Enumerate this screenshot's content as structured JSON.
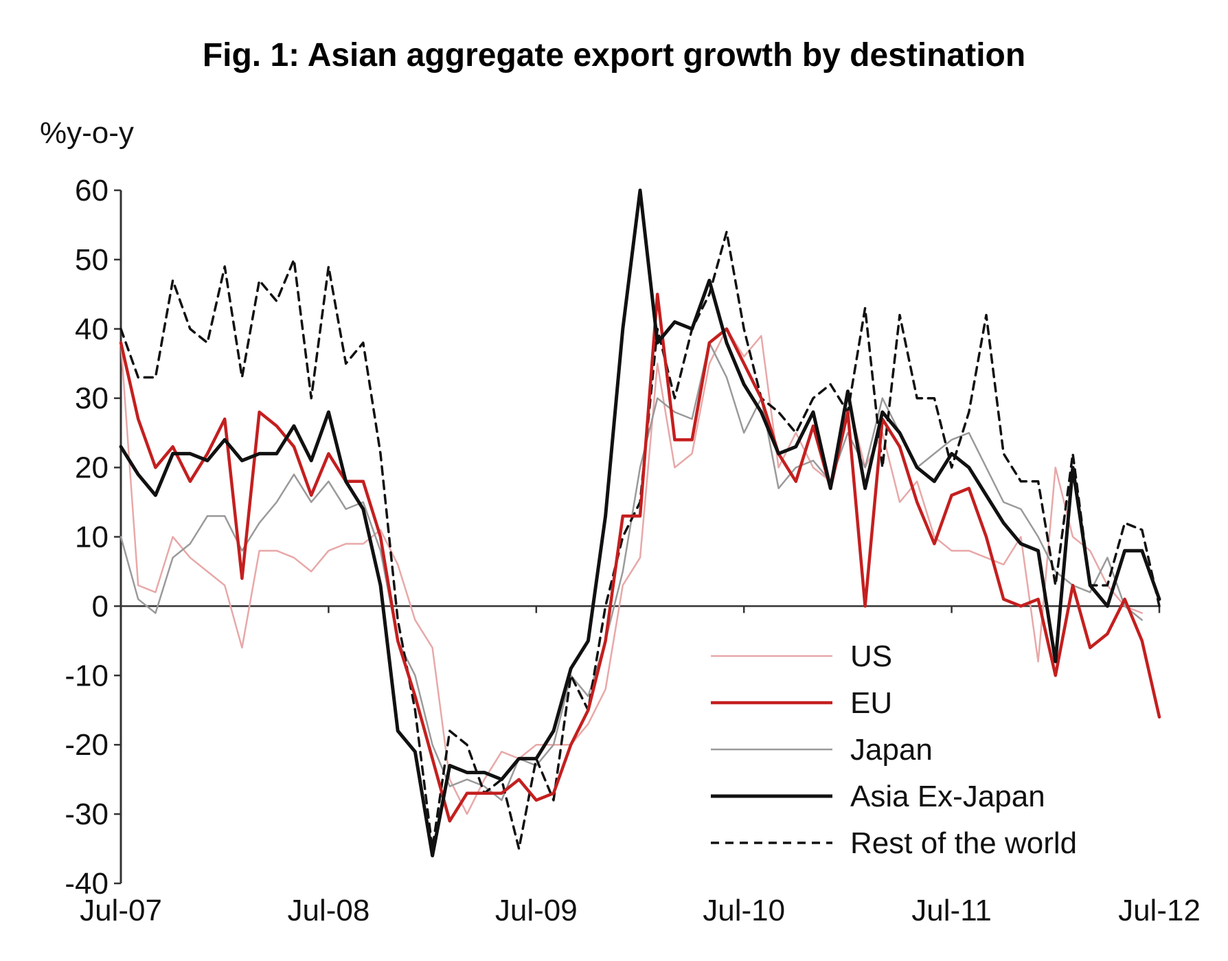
{
  "chart_data": {
    "type": "line",
    "title": "Fig. 1: Asian aggregate export growth by destination",
    "ylabel": "%y-o-y",
    "ylim": [
      -40,
      60
    ],
    "y_ticks": [
      60,
      50,
      40,
      30,
      20,
      10,
      0,
      -10,
      -20,
      -30,
      -40
    ],
    "x_range": [
      0,
      60
    ],
    "x_ticks": [
      {
        "x": 0,
        "label": "Jul-07"
      },
      {
        "x": 12,
        "label": "Jul-08"
      },
      {
        "x": 24,
        "label": "Jul-09"
      },
      {
        "x": 36,
        "label": "Jul-10"
      },
      {
        "x": 48,
        "label": "Jul-11"
      },
      {
        "x": 60,
        "label": "Jul-12"
      }
    ],
    "grid": false,
    "legend_position": "bottom-right",
    "series": [
      {
        "name": "US",
        "color": "#e8a8a8",
        "width": 2.5,
        "dash": "",
        "values": [
          [
            0,
            38
          ],
          [
            1,
            3
          ],
          [
            2,
            2
          ],
          [
            3,
            10
          ],
          [
            4,
            7
          ],
          [
            5,
            5
          ],
          [
            6,
            3
          ],
          [
            7,
            -6
          ],
          [
            8,
            8
          ],
          [
            9,
            8
          ],
          [
            10,
            7
          ],
          [
            11,
            5
          ],
          [
            12,
            8
          ],
          [
            13,
            9
          ],
          [
            14,
            9
          ],
          [
            15,
            11
          ],
          [
            16,
            6
          ],
          [
            17,
            -2
          ],
          [
            18,
            -6
          ],
          [
            19,
            -25
          ],
          [
            20,
            -30
          ],
          [
            21,
            -25
          ],
          [
            22,
            -21
          ],
          [
            23,
            -22
          ],
          [
            24,
            -20
          ],
          [
            25,
            -20
          ],
          [
            26,
            -20
          ],
          [
            27,
            -17
          ],
          [
            28,
            -12
          ],
          [
            29,
            3
          ],
          [
            30,
            7
          ],
          [
            31,
            35
          ],
          [
            32,
            20
          ],
          [
            33,
            22
          ],
          [
            34,
            35
          ],
          [
            35,
            40
          ],
          [
            36,
            36
          ],
          [
            37,
            39
          ],
          [
            38,
            20
          ],
          [
            39,
            25
          ],
          [
            40,
            20
          ],
          [
            41,
            18
          ],
          [
            42,
            30
          ],
          [
            43,
            20
          ],
          [
            44,
            25
          ],
          [
            45,
            15
          ],
          [
            46,
            18
          ],
          [
            47,
            10
          ],
          [
            48,
            8
          ],
          [
            49,
            8
          ],
          [
            50,
            7
          ],
          [
            51,
            6
          ],
          [
            52,
            10
          ],
          [
            53,
            -8
          ],
          [
            54,
            20
          ],
          [
            55,
            10
          ],
          [
            56,
            8
          ],
          [
            57,
            3
          ],
          [
            58,
            0
          ],
          [
            59,
            -1
          ]
        ]
      },
      {
        "name": "Japan",
        "color": "#9a9a9a",
        "width": 2.5,
        "dash": "",
        "values": [
          [
            0,
            10
          ],
          [
            1,
            1
          ],
          [
            2,
            -1
          ],
          [
            3,
            7
          ],
          [
            4,
            9
          ],
          [
            5,
            13
          ],
          [
            6,
            13
          ],
          [
            7,
            8
          ],
          [
            8,
            12
          ],
          [
            9,
            15
          ],
          [
            10,
            19
          ],
          [
            11,
            15
          ],
          [
            12,
            18
          ],
          [
            13,
            14
          ],
          [
            14,
            15
          ],
          [
            15,
            8
          ],
          [
            16,
            -5
          ],
          [
            17,
            -10
          ],
          [
            18,
            -20
          ],
          [
            19,
            -26
          ],
          [
            20,
            -25
          ],
          [
            21,
            -26
          ],
          [
            22,
            -28
          ],
          [
            23,
            -22
          ],
          [
            24,
            -23
          ],
          [
            25,
            -20
          ],
          [
            26,
            -10
          ],
          [
            27,
            -13
          ],
          [
            28,
            -5
          ],
          [
            29,
            5
          ],
          [
            30,
            20
          ],
          [
            31,
            30
          ],
          [
            32,
            28
          ],
          [
            33,
            27
          ],
          [
            34,
            38
          ],
          [
            35,
            33
          ],
          [
            36,
            25
          ],
          [
            37,
            30
          ],
          [
            38,
            17
          ],
          [
            39,
            20
          ],
          [
            40,
            21
          ],
          [
            41,
            18
          ],
          [
            42,
            25
          ],
          [
            43,
            20
          ],
          [
            44,
            30
          ],
          [
            45,
            25
          ],
          [
            46,
            20
          ],
          [
            47,
            22
          ],
          [
            48,
            24
          ],
          [
            49,
            25
          ],
          [
            50,
            20
          ],
          [
            51,
            15
          ],
          [
            52,
            14
          ],
          [
            53,
            10
          ],
          [
            54,
            5
          ],
          [
            55,
            3
          ],
          [
            56,
            2
          ],
          [
            57,
            7
          ],
          [
            58,
            0
          ],
          [
            59,
            -2
          ]
        ]
      },
      {
        "name": "Rest of the world",
        "color": "#111111",
        "width": 3.5,
        "dash": "12,9",
        "values": [
          [
            0,
            40
          ],
          [
            1,
            33
          ],
          [
            2,
            33
          ],
          [
            3,
            47
          ],
          [
            4,
            40
          ],
          [
            5,
            38
          ],
          [
            6,
            49
          ],
          [
            7,
            33
          ],
          [
            8,
            47
          ],
          [
            9,
            44
          ],
          [
            10,
            50
          ],
          [
            11,
            30
          ],
          [
            12,
            49
          ],
          [
            13,
            35
          ],
          [
            14,
            38
          ],
          [
            15,
            22
          ],
          [
            16,
            -2
          ],
          [
            17,
            -15
          ],
          [
            18,
            -35
          ],
          [
            19,
            -18
          ],
          [
            20,
            -20
          ],
          [
            21,
            -27
          ],
          [
            22,
            -25
          ],
          [
            23,
            -35
          ],
          [
            24,
            -22
          ],
          [
            25,
            -28
          ],
          [
            26,
            -10
          ],
          [
            27,
            -15
          ],
          [
            28,
            0
          ],
          [
            29,
            10
          ],
          [
            30,
            15
          ],
          [
            31,
            40
          ],
          [
            32,
            30
          ],
          [
            33,
            40
          ],
          [
            34,
            45
          ],
          [
            35,
            54
          ],
          [
            36,
            40
          ],
          [
            37,
            30
          ],
          [
            38,
            28
          ],
          [
            39,
            25
          ],
          [
            40,
            30
          ],
          [
            41,
            32
          ],
          [
            42,
            28
          ],
          [
            43,
            43
          ],
          [
            44,
            20
          ],
          [
            45,
            42
          ],
          [
            46,
            30
          ],
          [
            47,
            30
          ],
          [
            48,
            20
          ],
          [
            49,
            28
          ],
          [
            50,
            42
          ],
          [
            51,
            22
          ],
          [
            52,
            18
          ],
          [
            53,
            18
          ],
          [
            54,
            3
          ],
          [
            55,
            22
          ],
          [
            56,
            3
          ],
          [
            57,
            3
          ],
          [
            58,
            12
          ],
          [
            59,
            11
          ],
          [
            60,
            0
          ]
        ]
      },
      {
        "name": "EU",
        "color": "#c41f1f",
        "width": 4.5,
        "dash": "",
        "values": [
          [
            0,
            38
          ],
          [
            1,
            27
          ],
          [
            2,
            20
          ],
          [
            3,
            23
          ],
          [
            4,
            18
          ],
          [
            5,
            22
          ],
          [
            6,
            27
          ],
          [
            7,
            4
          ],
          [
            8,
            28
          ],
          [
            9,
            26
          ],
          [
            10,
            23
          ],
          [
            11,
            16
          ],
          [
            12,
            22
          ],
          [
            13,
            18
          ],
          [
            14,
            18
          ],
          [
            15,
            10
          ],
          [
            16,
            -5
          ],
          [
            17,
            -13
          ],
          [
            18,
            -22
          ],
          [
            19,
            -31
          ],
          [
            20,
            -27
          ],
          [
            21,
            -27
          ],
          [
            22,
            -27
          ],
          [
            23,
            -25
          ],
          [
            24,
            -28
          ],
          [
            25,
            -27
          ],
          [
            26,
            -20
          ],
          [
            27,
            -15
          ],
          [
            28,
            -5
          ],
          [
            29,
            13
          ],
          [
            30,
            13
          ],
          [
            31,
            45
          ],
          [
            32,
            24
          ],
          [
            33,
            24
          ],
          [
            34,
            38
          ],
          [
            35,
            40
          ],
          [
            36,
            35
          ],
          [
            37,
            30
          ],
          [
            38,
            22
          ],
          [
            39,
            18
          ],
          [
            40,
            26
          ],
          [
            41,
            17
          ],
          [
            42,
            28
          ],
          [
            43,
            0
          ],
          [
            44,
            27
          ],
          [
            45,
            23
          ],
          [
            46,
            15
          ],
          [
            47,
            9
          ],
          [
            48,
            16
          ],
          [
            49,
            17
          ],
          [
            50,
            10
          ],
          [
            51,
            1
          ],
          [
            52,
            0
          ],
          [
            53,
            1
          ],
          [
            54,
            -10
          ],
          [
            55,
            3
          ],
          [
            56,
            -6
          ],
          [
            57,
            -4
          ],
          [
            58,
            1
          ],
          [
            59,
            -5
          ],
          [
            60,
            -16
          ]
        ]
      },
      {
        "name": "Asia Ex-Japan",
        "color": "#111111",
        "width": 5,
        "dash": "",
        "values": [
          [
            0,
            23
          ],
          [
            1,
            19
          ],
          [
            2,
            16
          ],
          [
            3,
            22
          ],
          [
            4,
            22
          ],
          [
            5,
            21
          ],
          [
            6,
            24
          ],
          [
            7,
            21
          ],
          [
            8,
            22
          ],
          [
            9,
            22
          ],
          [
            10,
            26
          ],
          [
            11,
            21
          ],
          [
            12,
            28
          ],
          [
            13,
            18
          ],
          [
            14,
            14
          ],
          [
            15,
            3
          ],
          [
            16,
            -18
          ],
          [
            17,
            -21
          ],
          [
            18,
            -36
          ],
          [
            19,
            -23
          ],
          [
            20,
            -24
          ],
          [
            21,
            -24
          ],
          [
            22,
            -25
          ],
          [
            23,
            -22
          ],
          [
            24,
            -22
          ],
          [
            25,
            -18
          ],
          [
            26,
            -9
          ],
          [
            27,
            -5
          ],
          [
            28,
            13
          ],
          [
            29,
            40
          ],
          [
            30,
            60
          ],
          [
            31,
            38
          ],
          [
            32,
            41
          ],
          [
            33,
            40
          ],
          [
            34,
            47
          ],
          [
            35,
            38
          ],
          [
            36,
            32
          ],
          [
            37,
            28
          ],
          [
            38,
            22
          ],
          [
            39,
            23
          ],
          [
            40,
            28
          ],
          [
            41,
            17
          ],
          [
            42,
            31
          ],
          [
            43,
            17
          ],
          [
            44,
            28
          ],
          [
            45,
            25
          ],
          [
            46,
            20
          ],
          [
            47,
            18
          ],
          [
            48,
            22
          ],
          [
            49,
            20
          ],
          [
            50,
            16
          ],
          [
            51,
            12
          ],
          [
            52,
            9
          ],
          [
            53,
            8
          ],
          [
            54,
            -8
          ],
          [
            55,
            20
          ],
          [
            56,
            3
          ],
          [
            57,
            0
          ],
          [
            58,
            8
          ],
          [
            59,
            8
          ],
          [
            60,
            1
          ]
        ]
      }
    ],
    "legend": [
      {
        "label": "US",
        "color": "#e8a8a8",
        "width": 2.5,
        "dash": ""
      },
      {
        "label": "EU",
        "color": "#c41f1f",
        "width": 4.5,
        "dash": ""
      },
      {
        "label": "Japan",
        "color": "#9a9a9a",
        "width": 2.5,
        "dash": ""
      },
      {
        "label": "Asia Ex-Japan",
        "color": "#111111",
        "width": 5,
        "dash": ""
      },
      {
        "label": "Rest of the world",
        "color": "#111111",
        "width": 3.5,
        "dash": "12,9"
      }
    ]
  }
}
